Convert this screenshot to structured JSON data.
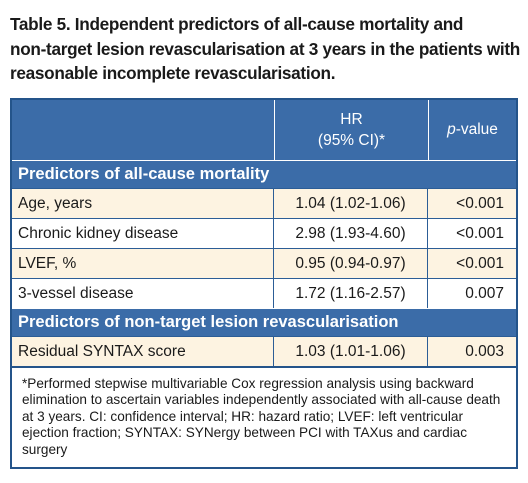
{
  "caption": {
    "line1": "Table 5. Independent predictors of all-cause mortality and",
    "line2": "non-target lesion revascularisation at 3 years in the patients with",
    "line3": "reasonable incomplete revascularisation."
  },
  "header": {
    "hr_line1": "HR",
    "hr_line2": "(95% CI)*",
    "p_italic": "p",
    "p_rest": "-value"
  },
  "sections": [
    {
      "title": "Predictors of all-cause mortality",
      "rows": [
        {
          "label": "Age, years",
          "hr": "1.04 (1.02-1.06)",
          "p": "<0.001"
        },
        {
          "label": "Chronic kidney disease",
          "hr": "2.98 (1.93-4.60)",
          "p": "<0.001"
        },
        {
          "label": "LVEF, %",
          "hr": "0.95 (0.94-0.97)",
          "p": "<0.001"
        },
        {
          "label": "3-vessel disease",
          "hr": "1.72 (1.16-2.57)",
          "p": "0.007"
        }
      ]
    },
    {
      "title": "Predictors of non-target lesion revascularisation",
      "rows": [
        {
          "label": "Residual SYNTAX score",
          "hr": "1.03 (1.01-1.06)",
          "p": "0.003"
        }
      ]
    }
  ],
  "footnote": "*Performed stepwise multivariable Cox regression analysis using backward elimination to ascertain variables independently associated with all-cause death at 3 years. CI: confidence interval; HR: hazard ratio; LVEF: left ventricular ejection fraction; SYNTAX: SYNergy between PCI with TAXus and cardiac surgery",
  "colors": {
    "header_bg": "#3b6ca8",
    "border": "#24548a",
    "shaded_row": "#fdf3e1"
  }
}
